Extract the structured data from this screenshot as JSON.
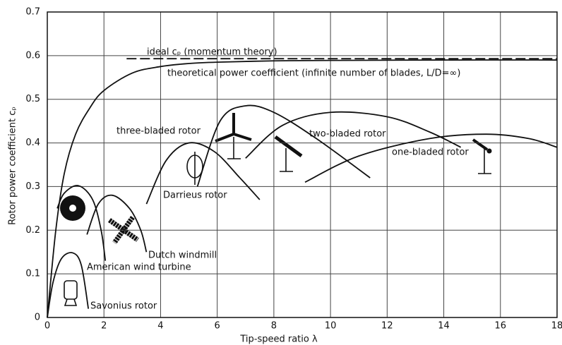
{
  "chart_data": {
    "type": "line",
    "x_label": "Tip-speed ratio λ",
    "y_label": "Rotor power coefficient cₚ",
    "xlim": [
      0,
      18
    ],
    "ylim": [
      0,
      0.7
    ],
    "xticks": [
      0,
      2,
      4,
      6,
      8,
      10,
      12,
      14,
      16,
      18
    ],
    "yticks": [
      0,
      0.1,
      0.2,
      0.3,
      0.4,
      0.5,
      0.6,
      0.7
    ],
    "grid": true,
    "series": [
      {
        "name": "ideal cₚ (momentum theory)",
        "color": "#111111",
        "dashed": true,
        "x": [
          2.8,
          18
        ],
        "values": [
          0.593,
          0.593
        ]
      },
      {
        "name": "theoretical power coefficient (infinite number of blades, L/D=∞)",
        "color": "#111111",
        "dashed": false,
        "x": [
          0,
          0.3,
          0.6,
          1,
          1.5,
          2,
          3,
          4,
          5,
          6,
          8,
          10,
          14,
          18
        ],
        "values": [
          0,
          0.2,
          0.33,
          0.42,
          0.48,
          0.52,
          0.56,
          0.575,
          0.582,
          0.585,
          0.588,
          0.589,
          0.59,
          0.59
        ]
      },
      {
        "name": "Savonius rotor",
        "color": "#111111",
        "dashed": false,
        "x": [
          0,
          0.2,
          0.5,
          0.9,
          1.2,
          1.45
        ],
        "values": [
          0,
          0.08,
          0.135,
          0.148,
          0.12,
          0.02
        ]
      },
      {
        "name": "American wind turbine",
        "color": "#111111",
        "dashed": false,
        "x": [
          0.35,
          0.6,
          1.1,
          1.6,
          1.9,
          2.05
        ],
        "values": [
          0.25,
          0.285,
          0.302,
          0.27,
          0.2,
          0.13
        ]
      },
      {
        "name": "Dutch windmill",
        "color": "#111111",
        "dashed": false,
        "x": [
          1.4,
          1.8,
          2.3,
          2.9,
          3.3,
          3.5
        ],
        "values": [
          0.19,
          0.26,
          0.28,
          0.25,
          0.2,
          0.15
        ]
      },
      {
        "name": "Darrieus rotor",
        "color": "#111111",
        "dashed": false,
        "x": [
          3.5,
          4.2,
          5,
          5.9,
          6.8,
          7.5
        ],
        "values": [
          0.26,
          0.36,
          0.4,
          0.38,
          0.32,
          0.27
        ]
      },
      {
        "name": "three-bladed rotor",
        "color": "#111111",
        "dashed": false,
        "x": [
          5.3,
          6.1,
          7,
          8,
          9.5,
          11.4
        ],
        "values": [
          0.3,
          0.45,
          0.485,
          0.47,
          0.41,
          0.32
        ]
      },
      {
        "name": "two-bladed rotor",
        "color": "#111111",
        "dashed": false,
        "x": [
          7,
          8.3,
          10,
          12,
          13.5,
          14.6
        ],
        "values": [
          0.365,
          0.44,
          0.47,
          0.46,
          0.425,
          0.39
        ]
      },
      {
        "name": "one-bladed rotor",
        "color": "#111111",
        "dashed": false,
        "x": [
          9.1,
          11,
          13.5,
          15.5,
          17,
          18
        ],
        "values": [
          0.31,
          0.37,
          0.41,
          0.42,
          0.41,
          0.39
        ]
      }
    ]
  }
}
